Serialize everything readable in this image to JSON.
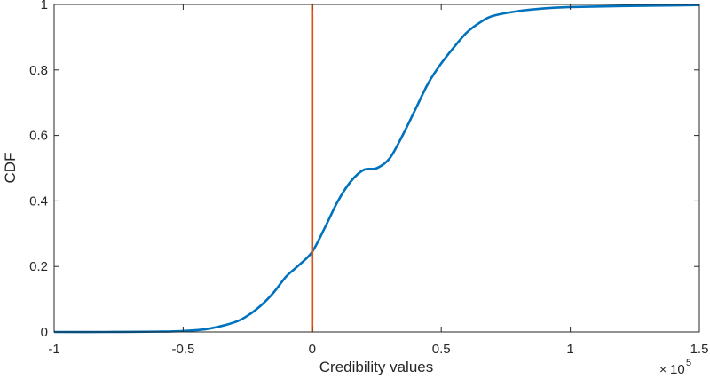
{
  "chart_data": {
    "type": "line",
    "title": "",
    "xlabel": "Credibility values",
    "ylabel": "CDF",
    "x_exponent_base": "10",
    "x_exponent_power": "5",
    "x_exponent_prefix": "×",
    "xlim": [
      -1,
      1.5
    ],
    "ylim": [
      0,
      1
    ],
    "grid": false,
    "xticks": [
      -1,
      -0.5,
      0,
      0.5,
      1,
      1.5
    ],
    "xtick_labels": [
      "-1",
      "-0.5",
      "0",
      "0.5",
      "1",
      "1.5"
    ],
    "yticks": [
      0,
      0.2,
      0.4,
      0.6,
      0.8,
      1
    ],
    "ytick_labels": [
      "0",
      "0.2",
      "0.4",
      "0.6",
      "0.8",
      "1"
    ],
    "series": [
      {
        "name": "CDF",
        "color": "#0072BD",
        "x": [
          -1,
          -0.8,
          -0.6,
          -0.5,
          -0.4,
          -0.3,
          -0.25,
          -0.2,
          -0.15,
          -0.1,
          -0.05,
          0,
          0.05,
          0.1,
          0.15,
          0.2,
          0.25,
          0.3,
          0.35,
          0.4,
          0.45,
          0.5,
          0.55,
          0.6,
          0.65,
          0.7,
          0.8,
          0.9,
          1.0,
          1.2,
          1.5
        ],
        "y": [
          0,
          0,
          0.001,
          0.003,
          0.01,
          0.03,
          0.05,
          0.08,
          0.12,
          0.17,
          0.205,
          0.245,
          0.32,
          0.4,
          0.46,
          0.495,
          0.5,
          0.53,
          0.6,
          0.68,
          0.76,
          0.82,
          0.87,
          0.915,
          0.945,
          0.965,
          0.98,
          0.988,
          0.992,
          0.995,
          0.998
        ]
      }
    ],
    "vertical_line": {
      "x": 0,
      "color": "#D95319"
    }
  }
}
